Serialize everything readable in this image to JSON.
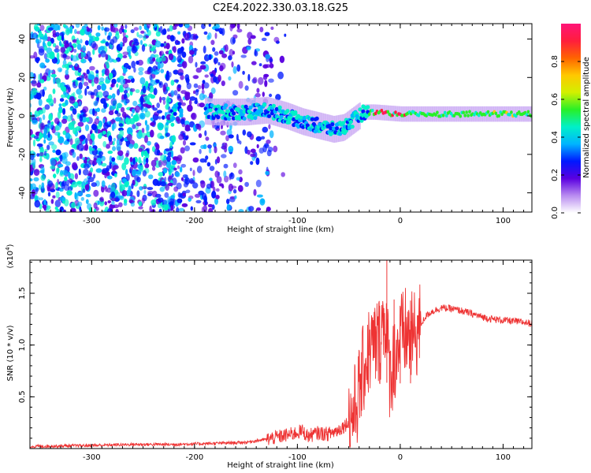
{
  "title": "C2E4.2022.330.03.18.G25",
  "chart_data": [
    {
      "type": "heatmap",
      "name": "spectrogram",
      "xlabel": "Height of straight line (km)",
      "ylabel": "Frequency (Hz)",
      "xlim": [
        -360,
        128
      ],
      "ylim": [
        -50,
        48
      ],
      "xticks": [
        -300,
        -200,
        -100,
        0,
        100
      ],
      "xtick_labels": [
        "-300",
        "-200",
        "-100",
        "0",
        "100"
      ],
      "yticks": [
        -40,
        -20,
        0,
        20,
        40
      ],
      "ytick_labels": [
        "-40",
        "-20",
        "0",
        "20",
        "40"
      ],
      "track_centerline": [
        {
          "x": -220,
          "y": 4
        },
        {
          "x": -180,
          "y": 2
        },
        {
          "x": -150,
          "y": 2
        },
        {
          "x": -130,
          "y": 3
        },
        {
          "x": -110,
          "y": 0
        },
        {
          "x": -95,
          "y": -3
        },
        {
          "x": -80,
          "y": -5
        },
        {
          "x": -65,
          "y": -7
        },
        {
          "x": -55,
          "y": -6
        },
        {
          "x": -45,
          "y": -2
        },
        {
          "x": -35,
          "y": 2
        },
        {
          "x": -25,
          "y": 2
        },
        {
          "x": 0,
          "y": 1
        },
        {
          "x": 50,
          "y": 1
        },
        {
          "x": 128,
          "y": 1
        }
      ],
      "colorbar": {
        "label": "Normalized spectral amplitude",
        "range": [
          0,
          1
        ],
        "ticks": [
          0.0,
          0.2,
          0.4,
          0.6,
          0.8
        ],
        "tick_labels": [
          "0.0",
          "0.2",
          "0.4",
          "0.6",
          "0.8"
        ],
        "colors": [
          "#ffffff",
          "#b98cf0",
          "#5a00e0",
          "#0018ff",
          "#00b4ff",
          "#00f0c8",
          "#28f028",
          "#d2f000",
          "#ffc800",
          "#ff6400",
          "#ff1e3c",
          "#ff1478"
        ]
      }
    },
    {
      "type": "line",
      "name": "snr",
      "xlabel": "Height of straight line (km)",
      "ylabel": "SNR (10 * v/v)",
      "yscale_label": "(x10",
      "yscale_exp": "4",
      "yscale_close": ")",
      "xlim": [
        -360,
        128
      ],
      "ylim": [
        0,
        1.82
      ],
      "xticks": [
        -300,
        -200,
        -100,
        0,
        100
      ],
      "xtick_labels": [
        "-300",
        "-200",
        "-100",
        "0",
        "100"
      ],
      "yticks": [
        0.5,
        1.0,
        1.5
      ],
      "ytick_labels": [
        "0.5",
        "1.0",
        "1.5"
      ],
      "line_color": "#ee3333",
      "series": [
        {
          "name": "SNR",
          "points": [
            [
              -360,
              0.02
            ],
            [
              -300,
              0.03
            ],
            [
              -260,
              0.04
            ],
            [
              -220,
              0.04
            ],
            [
              -180,
              0.05
            ],
            [
              -150,
              0.06
            ],
            [
              -130,
              0.09
            ],
            [
              -115,
              0.12
            ],
            [
              -105,
              0.14
            ],
            [
              -95,
              0.17
            ],
            [
              -90,
              0.12
            ],
            [
              -80,
              0.15
            ],
            [
              -70,
              0.14
            ],
            [
              -60,
              0.18
            ],
            [
              -52,
              0.24
            ],
            [
              -45,
              0.35
            ],
            [
              -40,
              0.55
            ],
            [
              -35,
              0.8
            ],
            [
              -30,
              0.95
            ],
            [
              -25,
              1.0
            ],
            [
              -20,
              1.05
            ],
            [
              -15,
              1.3
            ],
            [
              -10,
              0.7
            ],
            [
              -5,
              0.9
            ],
            [
              0,
              1.05
            ],
            [
              5,
              1.12
            ],
            [
              10,
              1.05
            ],
            [
              15,
              1.1
            ],
            [
              20,
              1.2
            ],
            [
              25,
              1.28
            ],
            [
              30,
              1.32
            ],
            [
              40,
              1.36
            ],
            [
              50,
              1.35
            ],
            [
              60,
              1.33
            ],
            [
              70,
              1.3
            ],
            [
              80,
              1.27
            ],
            [
              90,
              1.25
            ],
            [
              100,
              1.24
            ],
            [
              110,
              1.23
            ],
            [
              128,
              1.21
            ]
          ],
          "peaks": [
            {
              "x": -13,
              "y": 1.82
            },
            {
              "x": -6,
              "y": 1.44
            },
            {
              "x": -20,
              "y": 1.38
            },
            {
              "x": 10,
              "y": 1.43
            },
            {
              "x": 0,
              "y": 1.3
            }
          ]
        }
      ]
    }
  ]
}
